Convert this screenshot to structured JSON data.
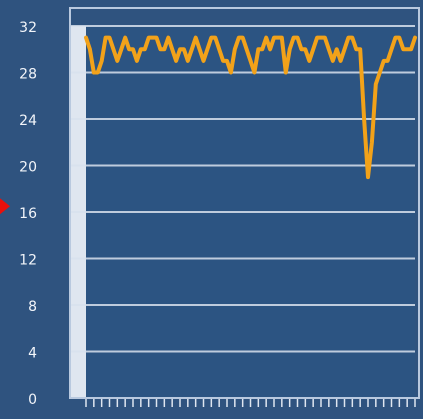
{
  "colors": {
    "background": "#2f537f",
    "plot_background": "#2c5482",
    "frame": "#b9c9df",
    "gridline": "#d9e2ee",
    "label": "#f2f5fa",
    "axis_strip": "#dfe6f0",
    "series_line": "#f2a21a",
    "marker": "#e8100c"
  },
  "chart_data": {
    "type": "line",
    "title": "",
    "xlabel": "",
    "ylabel": "",
    "ylim": [
      0,
      32
    ],
    "yticks": [
      0,
      4,
      8,
      12,
      16,
      20,
      24,
      28,
      32
    ],
    "grid": true,
    "legend": "none",
    "x": [
      1,
      2,
      3,
      4,
      5,
      6,
      7,
      8,
      9,
      10,
      11,
      12,
      13,
      14,
      15,
      16,
      17,
      18,
      19,
      20,
      21,
      22,
      23,
      24,
      25,
      26,
      27,
      28,
      29,
      30,
      31,
      32,
      33,
      34,
      35,
      36,
      37,
      38,
      39,
      40,
      41,
      42,
      43,
      44,
      45,
      46,
      47,
      48,
      49,
      50,
      51,
      52,
      53,
      54,
      55,
      56,
      57,
      58,
      59,
      60,
      61,
      62,
      63,
      64,
      65,
      66,
      67,
      68,
      69,
      70,
      71,
      72,
      73,
      74,
      75,
      76,
      77,
      78,
      79,
      80,
      81,
      82,
      83,
      84,
      85
    ],
    "series": [
      {
        "values": [
          31,
          30,
          28,
          28,
          29,
          31,
          31,
          30,
          29,
          30,
          31,
          30,
          30,
          29,
          30,
          30,
          31,
          31,
          31,
          30,
          30,
          31,
          30,
          29,
          30,
          30,
          29,
          30,
          31,
          30,
          29,
          30,
          31,
          31,
          30,
          29,
          29,
          28,
          30,
          31,
          31,
          30,
          29,
          28,
          30,
          30,
          31,
          30,
          31,
          31,
          31,
          28,
          30,
          31,
          31,
          30,
          30,
          29,
          30,
          31,
          31,
          31,
          30,
          29,
          30,
          29,
          30,
          31,
          31,
          30,
          30,
          24,
          19,
          22,
          27,
          28,
          29,
          29,
          30,
          31,
          31,
          30,
          30,
          30,
          31
        ]
      }
    ],
    "highlight_marker": {
      "y": 16.5,
      "shape": "triangle-right"
    }
  }
}
